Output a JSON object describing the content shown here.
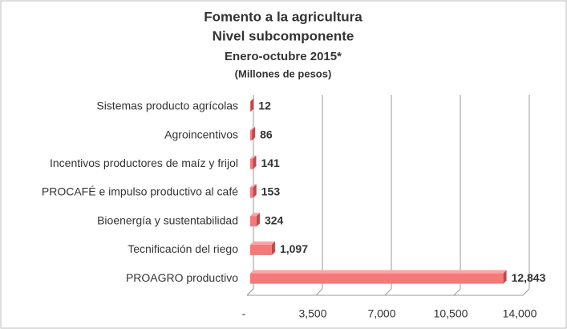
{
  "chart_data": {
    "type": "barh",
    "title": "Fomento a la agricultura",
    "subtitle": [
      "Nivel subcomponente",
      "Enero-octubre 2015*",
      "(Millones de pesos)"
    ],
    "categories": [
      "Sistemas producto agrícolas",
      "Agroincentivos",
      "Incentivos productores de maíz y frijol",
      "PROCAFÉ e impulso productivo al café",
      "Bioenergía y sustentabilidad",
      "Tecnificación del riego",
      "PROAGRO productivo"
    ],
    "values": [
      12,
      86,
      141,
      153,
      324,
      1097,
      12843
    ],
    "value_labels": [
      "12",
      "86",
      "141",
      "153",
      "324",
      "1,097",
      "12,843"
    ],
    "color": "#f47a7a",
    "xlim": [
      0,
      14000
    ],
    "xticks": [
      {
        "value": 0,
        "label": "-"
      },
      {
        "value": 3500,
        "label": "3,500"
      },
      {
        "value": 7000,
        "label": "7,000"
      },
      {
        "value": 10500,
        "label": "10,500"
      },
      {
        "value": 14000,
        "label": "14,000"
      }
    ],
    "grid": true
  }
}
